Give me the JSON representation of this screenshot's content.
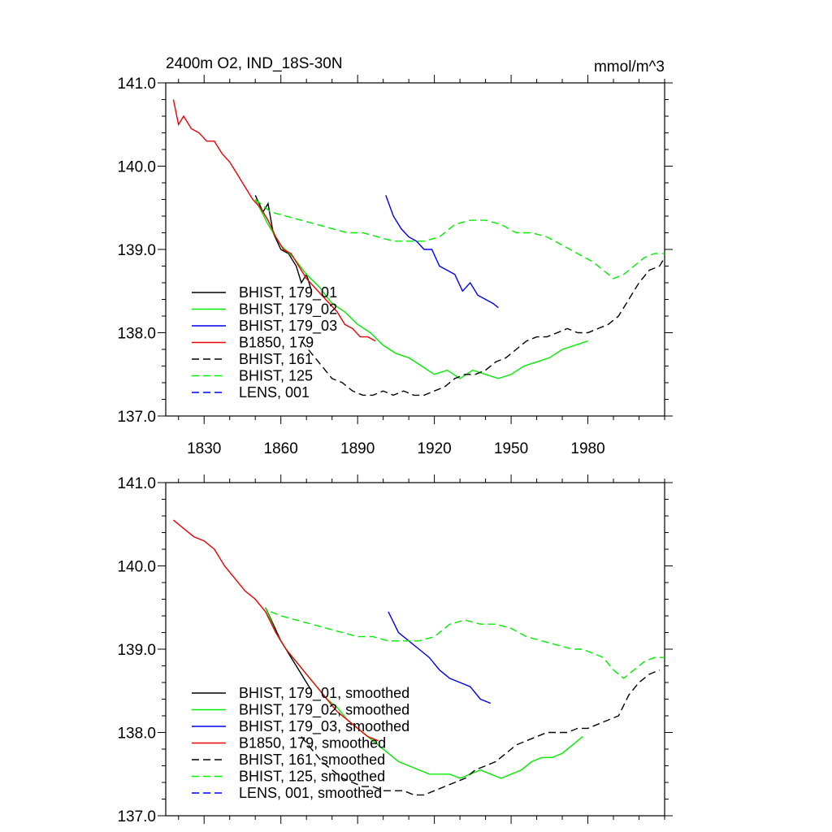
{
  "figure_title": "2400m O2, IND_18S-30N",
  "units": "mmol/m^3",
  "colors": {
    "black": "#000000",
    "green": "#00ee00",
    "blue": "#0000ee",
    "red": "#ee0000"
  },
  "chart_data": [
    {
      "type": "line",
      "title": "2400m O2, IND_18S-30N",
      "units": "mmol/m^3",
      "xlim": [
        1815,
        2010
      ],
      "ylim": [
        137,
        141
      ],
      "xticks": [
        1830,
        1860,
        1890,
        1920,
        1950,
        1980
      ],
      "xtick_labels": [
        "1830",
        "1860",
        "1890",
        "1920",
        "1950",
        "1980"
      ],
      "yticks": [
        137,
        138,
        139,
        140,
        141
      ],
      "ytick_labels": [
        "137.0",
        "138.0",
        "139.0",
        "140.0",
        "141.0"
      ],
      "legend_position": "bottom-left",
      "series": [
        {
          "name": "BHIST, 179_01",
          "color": "#000000",
          "dash": false,
          "x": [
            1850,
            1853,
            1855,
            1857,
            1860,
            1863,
            1866,
            1868,
            1870,
            1872
          ],
          "y": [
            139.65,
            139.45,
            139.55,
            139.2,
            139.0,
            138.95,
            138.8,
            138.6,
            138.7,
            138.5
          ]
        },
        {
          "name": "BHIST, 179_02",
          "color": "#00ee00",
          "dash": false,
          "x": [
            1850,
            1855,
            1860,
            1865,
            1870,
            1875,
            1880,
            1885,
            1890,
            1895,
            1900,
            1905,
            1910,
            1915,
            1920,
            1925,
            1930,
            1935,
            1940,
            1945,
            1950,
            1955,
            1960,
            1965,
            1970,
            1975,
            1980
          ],
          "y": [
            139.6,
            139.3,
            139.05,
            138.9,
            138.7,
            138.55,
            138.35,
            138.25,
            138.1,
            138.0,
            137.85,
            137.75,
            137.7,
            137.6,
            137.5,
            137.55,
            137.45,
            137.55,
            137.5,
            137.45,
            137.5,
            137.6,
            137.65,
            137.7,
            137.8,
            137.85,
            137.9
          ]
        },
        {
          "name": "BHIST, 179_03",
          "color": "#0000ee",
          "dash": false,
          "x": [
            1901,
            1904,
            1907,
            1910,
            1913,
            1916,
            1919,
            1922,
            1925,
            1928,
            1931,
            1934,
            1937,
            1940,
            1943,
            1945
          ],
          "y": [
            139.65,
            139.4,
            139.25,
            139.15,
            139.1,
            139.0,
            139.0,
            138.8,
            138.75,
            138.7,
            138.5,
            138.6,
            138.45,
            138.4,
            138.35,
            138.3
          ]
        },
        {
          "name": "B1850, 179",
          "color": "#ee0000",
          "dash": false,
          "x": [
            1818,
            1820,
            1822,
            1825,
            1828,
            1831,
            1834,
            1837,
            1840,
            1843,
            1846,
            1849,
            1852,
            1855,
            1858,
            1861,
            1864,
            1867,
            1870,
            1873,
            1876,
            1879,
            1882,
            1885,
            1888,
            1891,
            1894,
            1897
          ],
          "y": [
            140.8,
            140.5,
            140.6,
            140.45,
            140.4,
            140.3,
            140.3,
            140.15,
            140.05,
            139.9,
            139.75,
            139.6,
            139.5,
            139.35,
            139.15,
            139.0,
            138.95,
            138.8,
            138.65,
            138.55,
            138.45,
            138.35,
            138.25,
            138.1,
            138.05,
            137.95,
            137.95,
            137.9
          ]
        },
        {
          "name": "BHIST, 161",
          "color": "#000000",
          "dash": true,
          "x": [
            1868,
            1872,
            1876,
            1880,
            1884,
            1888,
            1892,
            1896,
            1900,
            1904,
            1908,
            1912,
            1916,
            1920,
            1924,
            1928,
            1932,
            1936,
            1940,
            1944,
            1948,
            1952,
            1956,
            1960,
            1964,
            1968,
            1972,
            1976,
            1980,
            1984,
            1988,
            1992,
            1996,
            2000,
            2004,
            2008,
            2010
          ],
          "y": [
            137.9,
            137.75,
            137.6,
            137.45,
            137.4,
            137.3,
            137.25,
            137.25,
            137.3,
            137.25,
            137.3,
            137.25,
            137.25,
            137.3,
            137.35,
            137.45,
            137.5,
            137.5,
            137.55,
            137.65,
            137.7,
            137.8,
            137.9,
            137.95,
            137.95,
            138.0,
            138.05,
            138.0,
            138.0,
            138.05,
            138.1,
            138.2,
            138.4,
            138.6,
            138.75,
            138.8,
            138.9
          ]
        },
        {
          "name": "BHIST, 125",
          "color": "#00ee00",
          "dash": true,
          "x": [
            1850,
            1856,
            1862,
            1868,
            1874,
            1880,
            1886,
            1892,
            1898,
            1904,
            1910,
            1916,
            1922,
            1928,
            1934,
            1940,
            1946,
            1952,
            1958,
            1964,
            1970,
            1976,
            1982,
            1986,
            1990,
            1994,
            1998,
            2002,
            2006,
            2010
          ],
          "y": [
            139.6,
            139.45,
            139.4,
            139.35,
            139.3,
            139.25,
            139.2,
            139.2,
            139.15,
            139.1,
            139.1,
            139.1,
            139.15,
            139.3,
            139.35,
            139.35,
            139.3,
            139.2,
            139.2,
            139.15,
            139.05,
            138.95,
            138.85,
            138.75,
            138.65,
            138.7,
            138.8,
            138.9,
            138.95,
            138.95
          ]
        },
        {
          "name": "LENS, 001",
          "color": "#0000ee",
          "dash": true,
          "x": [],
          "y": []
        }
      ]
    },
    {
      "type": "line",
      "title": "",
      "xlim": [
        1815,
        2010
      ],
      "ylim": [
        137,
        141
      ],
      "xticks": [
        1830,
        1860,
        1890,
        1920,
        1950,
        1980
      ],
      "yticks": [
        137,
        138,
        139,
        140,
        141
      ],
      "ytick_labels": [
        "137.0",
        "138.0",
        "139.0",
        "140.0",
        "141.0"
      ],
      "legend_position": "bottom-left",
      "series": [
        {
          "name": "BHIST, 179_01, smoothed",
          "color": "#000000",
          "dash": false,
          "x": [
            1854,
            1857,
            1860,
            1863,
            1866,
            1868,
            1870,
            1872
          ],
          "y": [
            139.5,
            139.3,
            139.1,
            138.95,
            138.8,
            138.7,
            138.6,
            138.5
          ]
        },
        {
          "name": "BHIST, 179_02, smoothed",
          "color": "#00ee00",
          "dash": false,
          "x": [
            1854,
            1858,
            1862,
            1866,
            1870,
            1874,
            1878,
            1882,
            1886,
            1890,
            1894,
            1898,
            1902,
            1906,
            1910,
            1914,
            1918,
            1922,
            1926,
            1930,
            1934,
            1938,
            1942,
            1946,
            1950,
            1954,
            1958,
            1962,
            1966,
            1970,
            1974,
            1978
          ],
          "y": [
            139.5,
            139.2,
            139.0,
            138.85,
            138.7,
            138.55,
            138.4,
            138.3,
            138.15,
            138.05,
            137.95,
            137.85,
            137.75,
            137.65,
            137.6,
            137.55,
            137.5,
            137.5,
            137.5,
            137.45,
            137.5,
            137.55,
            137.5,
            137.45,
            137.5,
            137.55,
            137.65,
            137.7,
            137.7,
            137.75,
            137.85,
            137.95
          ]
        },
        {
          "name": "BHIST, 179_03, smoothed",
          "color": "#0000ee",
          "dash": false,
          "x": [
            1902,
            1906,
            1910,
            1914,
            1918,
            1922,
            1926,
            1930,
            1934,
            1938,
            1942
          ],
          "y": [
            139.45,
            139.2,
            139.1,
            139.0,
            138.9,
            138.75,
            138.65,
            138.6,
            138.55,
            138.4,
            138.35
          ]
        },
        {
          "name": "B1850, 179, smoothed",
          "color": "#ee0000",
          "dash": false,
          "x": [
            1818,
            1822,
            1826,
            1830,
            1834,
            1838,
            1842,
            1846,
            1850,
            1854,
            1858,
            1862,
            1866,
            1870,
            1874,
            1878,
            1882,
            1886,
            1890,
            1894,
            1898
          ],
          "y": [
            140.55,
            140.45,
            140.35,
            140.3,
            140.2,
            140.0,
            139.85,
            139.7,
            139.6,
            139.45,
            139.2,
            139.0,
            138.85,
            138.7,
            138.55,
            138.4,
            138.25,
            138.15,
            138.05,
            137.95,
            137.9
          ]
        },
        {
          "name": "BHIST, 161, smoothed",
          "color": "#000000",
          "dash": true,
          "x": [
            1868,
            1872,
            1876,
            1880,
            1884,
            1888,
            1892,
            1896,
            1900,
            1904,
            1908,
            1912,
            1916,
            1920,
            1924,
            1928,
            1932,
            1936,
            1940,
            1944,
            1948,
            1952,
            1956,
            1960,
            1964,
            1968,
            1972,
            1976,
            1980,
            1984,
            1988,
            1992,
            1996,
            2000,
            2004,
            2008
          ],
          "y": [
            137.95,
            137.8,
            137.65,
            137.55,
            137.45,
            137.4,
            137.35,
            137.35,
            137.3,
            137.3,
            137.3,
            137.25,
            137.25,
            137.3,
            137.35,
            137.4,
            137.45,
            137.55,
            137.6,
            137.65,
            137.75,
            137.85,
            137.9,
            137.95,
            138.0,
            138.0,
            138.0,
            138.05,
            138.05,
            138.1,
            138.15,
            138.2,
            138.45,
            138.6,
            138.7,
            138.75
          ]
        },
        {
          "name": "BHIST, 125, smoothed",
          "color": "#00ee00",
          "dash": true,
          "x": [
            1856,
            1860,
            1866,
            1872,
            1878,
            1884,
            1890,
            1896,
            1902,
            1908,
            1914,
            1920,
            1926,
            1932,
            1938,
            1944,
            1950,
            1956,
            1962,
            1968,
            1974,
            1978,
            1982,
            1986,
            1990,
            1994,
            1998,
            2002,
            2006,
            2010
          ],
          "y": [
            139.45,
            139.4,
            139.35,
            139.3,
            139.25,
            139.2,
            139.15,
            139.15,
            139.1,
            139.1,
            139.1,
            139.15,
            139.3,
            139.35,
            139.3,
            139.3,
            139.25,
            139.15,
            139.1,
            139.05,
            139.0,
            139.0,
            138.95,
            138.9,
            138.75,
            138.65,
            138.75,
            138.85,
            138.9,
            138.9
          ]
        },
        {
          "name": "LENS, 001, smoothed",
          "color": "#0000ee",
          "dash": true,
          "x": [],
          "y": []
        }
      ]
    }
  ]
}
